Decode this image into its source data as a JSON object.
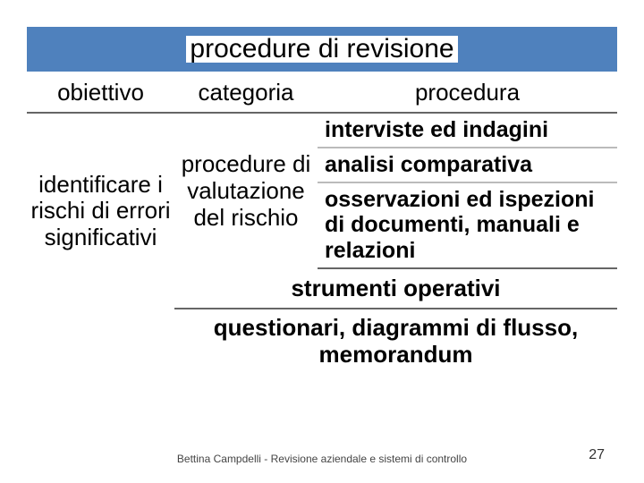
{
  "colors": {
    "title_bar_bg": "#4f81bd",
    "border_dark": "#666666",
    "border_light": "#bbbbbb",
    "bg": "#ffffff",
    "text": "#000000"
  },
  "title": "procedure di revisione",
  "headers": {
    "obiettivo": "obiettivo",
    "categoria": "categoria",
    "procedura": "procedura"
  },
  "obiettivo": "identificare i rischi di errori significativi",
  "categoria": "procedure di valutazione del rischio",
  "procedure": [
    "interviste ed indagini",
    "analisi comparativa",
    "osservazioni ed ispezioni di documenti, manuali e relazioni"
  ],
  "strumenti_label": "strumenti operativi",
  "strumenti_value": "questionari, diagrammi di flusso, memorandum",
  "footer": "Bettina Campdelli - Revisione aziendale e sistemi di controllo",
  "page_number": "27",
  "typography": {
    "title_fontsize": 30,
    "header_fontsize": 26,
    "cell_fontsize": 26,
    "proc_fontsize": 25,
    "footer_fontsize": 12,
    "pagenum_fontsize": 16
  }
}
